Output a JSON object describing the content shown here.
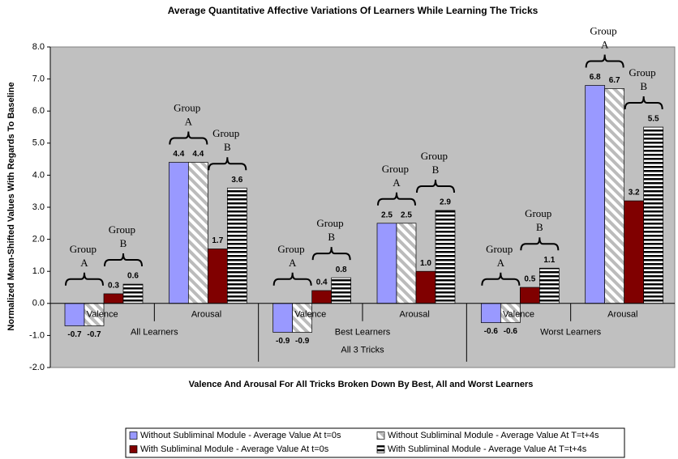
{
  "chart_data": {
    "type": "bar",
    "title": "Average Quantitative Affective Variations Of Learners While Learning The Tricks",
    "y_label": "Normalized Mean-Shifted Values With Regards To Baseline",
    "x_label": "Valence And Arousal For All Tricks Broken Down By Best, All and Worst Learners",
    "categories": [
      "Valence",
      "Arousal",
      "Valence",
      "Arousal",
      "Valence",
      "Arousal"
    ],
    "groups": [
      "All Learners",
      "Best Learners",
      "Worst Learners"
    ],
    "group_title": "All 3 Tricks",
    "annotations": [
      "Group A",
      "Group B"
    ],
    "series": [
      {
        "name": "Without Subliminal Module - Average Value At t=0s",
        "color": "#9999ff",
        "pattern": "solid",
        "values": [
          -0.7,
          4.4,
          -0.9,
          2.5,
          -0.6,
          6.8
        ],
        "value_labels": [
          "-0.7",
          "4.4",
          "-0.9",
          "2.5",
          "-0.6",
          "6.8"
        ]
      },
      {
        "name": "Without Subliminal Module - Average Value At T=t+4s",
        "color": "#ffffff",
        "pattern": "diagonal",
        "values": [
          -0.7,
          4.4,
          -0.9,
          2.5,
          -0.6,
          6.7
        ],
        "value_labels": [
          "-0.7",
          "4.4",
          "-0.9",
          "2.5",
          "-0.6",
          "6.7"
        ]
      },
      {
        "name": "With Subliminal Module - Average Value At t=0s",
        "color": "#800000",
        "pattern": "solid",
        "values": [
          0.3,
          1.7,
          0.4,
          1.0,
          0.5,
          3.2
        ],
        "value_labels": [
          "0.3",
          "1.7",
          "0.4",
          "1.0",
          "0.5",
          "3.2"
        ]
      },
      {
        "name": "With Subliminal Module - Average Value At T=t+4s",
        "color": "#ffffff",
        "pattern": "horizontal",
        "values": [
          0.6,
          3.6,
          0.8,
          2.9,
          1.1,
          5.5
        ],
        "value_labels": [
          "0.6",
          "3.6",
          "0.8",
          "2.9",
          "1.1",
          "5.5"
        ]
      }
    ],
    "ylim": [
      -2,
      8
    ],
    "yticks": [
      {
        "value": -2,
        "label": "-2.0"
      },
      {
        "value": -1,
        "label": "-1.0"
      },
      {
        "value": 0,
        "label": "0.0"
      },
      {
        "value": 1,
        "label": "1.0"
      },
      {
        "value": 2,
        "label": "2.0"
      },
      {
        "value": 3,
        "label": "3.0"
      },
      {
        "value": 4,
        "label": "4.0"
      },
      {
        "value": 5,
        "label": "5.0"
      },
      {
        "value": 6,
        "label": "6.0"
      },
      {
        "value": 7,
        "label": "7.0"
      },
      {
        "value": 8,
        "label": "8.0"
      }
    ],
    "plot_background": "#c0c0c0",
    "grid": false
  }
}
